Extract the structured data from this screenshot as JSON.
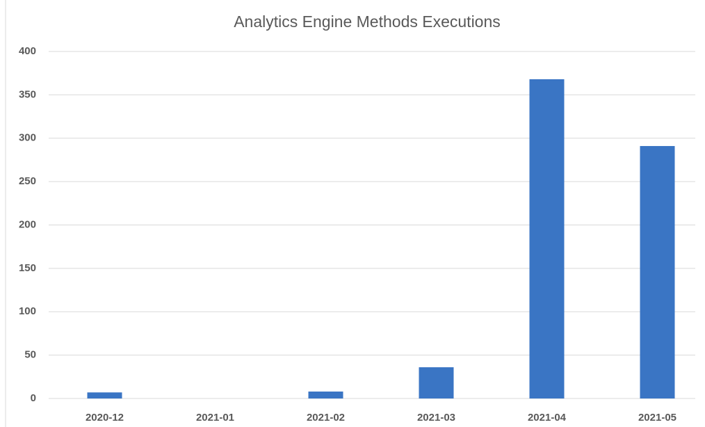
{
  "chart_data": {
    "type": "bar",
    "title": "Analytics Engine Methods Executions",
    "categories": [
      "2020-12",
      "2021-01",
      "2021-02",
      "2021-03",
      "2021-04",
      "2021-05"
    ],
    "values": [
      7,
      0,
      8,
      36,
      368,
      291
    ],
    "color": "#3a75c4",
    "ylim": [
      0,
      400
    ],
    "yticks": [
      0,
      50,
      100,
      150,
      200,
      250,
      300,
      350,
      400
    ],
    "grid": true
  }
}
